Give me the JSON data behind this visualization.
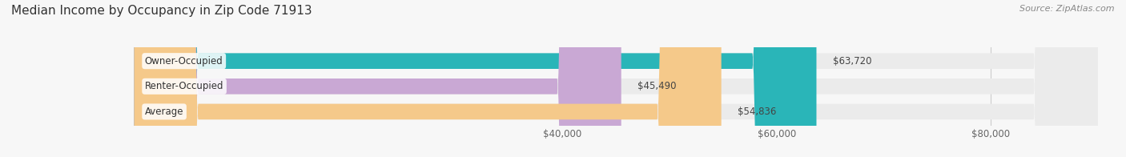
{
  "title": "Median Income by Occupancy in Zip Code 71913",
  "source": "Source: ZipAtlas.com",
  "categories": [
    "Owner-Occupied",
    "Renter-Occupied",
    "Average"
  ],
  "values": [
    63720,
    45490,
    54836
  ],
  "labels": [
    "$63,720",
    "$45,490",
    "$54,836"
  ],
  "bar_colors": [
    "#2ab5b8",
    "#c9a8d4",
    "#f5c98a"
  ],
  "bar_bg_color": "#ebebeb",
  "xlim_min": -12000,
  "xlim_max": 90000,
  "xticks": [
    40000,
    60000,
    80000
  ],
  "xtick_labels": [
    "$40,000",
    "$60,000",
    "$80,000"
  ],
  "title_fontsize": 11,
  "source_fontsize": 8,
  "label_fontsize": 8.5,
  "category_fontsize": 8.5,
  "tick_fontsize": 8.5,
  "bar_height": 0.62,
  "background_color": "#f7f7f7",
  "bar_rounding": 6000
}
